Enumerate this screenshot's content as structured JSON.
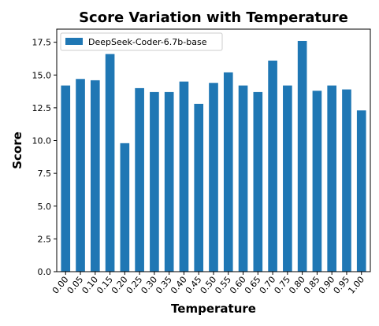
{
  "chart_data": {
    "type": "bar",
    "title": "Score Variation with Temperature",
    "xlabel": "Temperature",
    "ylabel": "Score",
    "categories": [
      "0.00",
      "0.05",
      "0.10",
      "0.15",
      "0.20",
      "0.25",
      "0.30",
      "0.35",
      "0.40",
      "0.45",
      "0.50",
      "0.55",
      "0.60",
      "0.65",
      "0.70",
      "0.75",
      "0.80",
      "0.85",
      "0.90",
      "0.95",
      "1.00"
    ],
    "series": [
      {
        "name": "DeepSeek-Coder-6.7b-base",
        "color": "#1f77b4",
        "values": [
          14.2,
          14.7,
          14.6,
          16.6,
          9.8,
          14.0,
          13.7,
          13.7,
          14.5,
          12.8,
          14.4,
          15.2,
          14.2,
          13.7,
          16.1,
          14.2,
          17.6,
          13.8,
          14.2,
          13.9,
          12.3
        ]
      }
    ],
    "ylim": [
      0,
      18.5
    ],
    "yticks": [
      "0.0",
      "2.5",
      "5.0",
      "7.5",
      "10.0",
      "12.5",
      "15.0",
      "17.5"
    ],
    "legend_position": "top-left",
    "grid": false
  }
}
